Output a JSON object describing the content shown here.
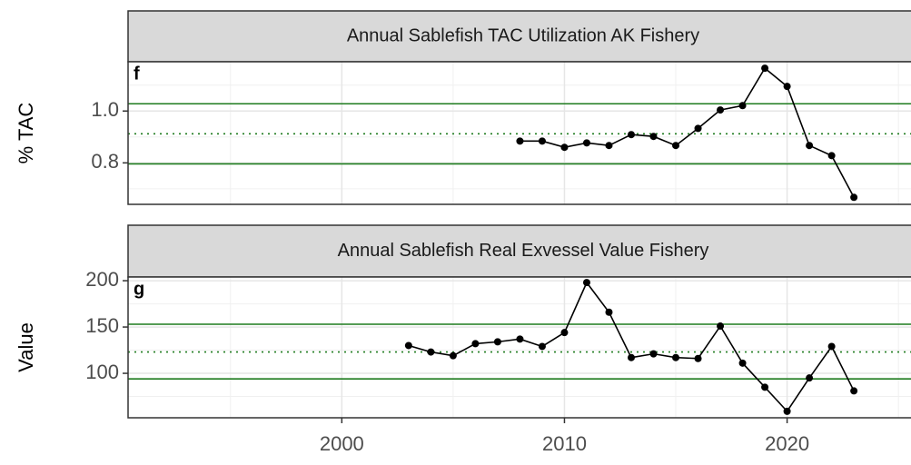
{
  "chart_data": [
    {
      "type": "line",
      "title": "Annual Sablefish TAC Utilization AK Fishery",
      "panel_label": "f",
      "ylabel": "% TAC",
      "x": [
        2008,
        2009,
        2010,
        2011,
        2012,
        2013,
        2014,
        2015,
        2016,
        2017,
        2018,
        2019,
        2020,
        2021,
        2022,
        2023
      ],
      "series": [
        {
          "color": "#000000",
          "values": [
            0.884,
            0.884,
            0.86,
            0.877,
            0.867,
            0.909,
            0.902,
            0.867,
            0.933,
            1.004,
            1.021,
            1.165,
            1.095,
            0.867,
            0.828,
            0.667
          ]
        }
      ],
      "reference_lines": [
        {
          "value": 1.028,
          "dotted": false
        },
        {
          "value": 0.912,
          "dotted": true
        },
        {
          "value": 0.796,
          "dotted": false
        }
      ],
      "reference_color": "#1e7b1e",
      "xlim": [
        1990.4,
        2025.85
      ],
      "xticks": [
        2000,
        2010,
        2020
      ],
      "show_xtick_labels": false,
      "ylim": [
        0.64,
        1.19
      ],
      "yticks": [
        {
          "value": 0.8,
          "label": "0.8"
        },
        {
          "value": 1.0,
          "label": "1.0"
        }
      ],
      "grid": true
    },
    {
      "type": "line",
      "title": "Annual Sablefish Real Exvessel Value Fishery",
      "panel_label": "g",
      "ylabel": "Value",
      "x": [
        2003,
        2004,
        2005,
        2006,
        2007,
        2008,
        2009,
        2010,
        2011,
        2012,
        2013,
        2014,
        2015,
        2016,
        2017,
        2018,
        2019,
        2020,
        2021,
        2022,
        2023
      ],
      "series": [
        {
          "color": "#000000",
          "values": [
            130,
            123,
            119,
            132,
            134,
            137,
            129,
            144,
            198,
            166,
            117,
            121,
            117,
            116,
            151,
            111,
            85,
            59,
            95,
            129,
            81
          ]
        }
      ],
      "reference_lines": [
        {
          "value": 153,
          "dotted": false
        },
        {
          "value": 123,
          "dotted": true
        },
        {
          "value": 94,
          "dotted": false
        }
      ],
      "reference_color": "#1e7b1e",
      "xlim": [
        1990.4,
        2025.85
      ],
      "xticks": [
        2000,
        2010,
        2020
      ],
      "show_xtick_labels": true,
      "ylim": [
        52,
        204
      ],
      "yticks": [
        100,
        150,
        200
      ],
      "grid": true
    }
  ]
}
